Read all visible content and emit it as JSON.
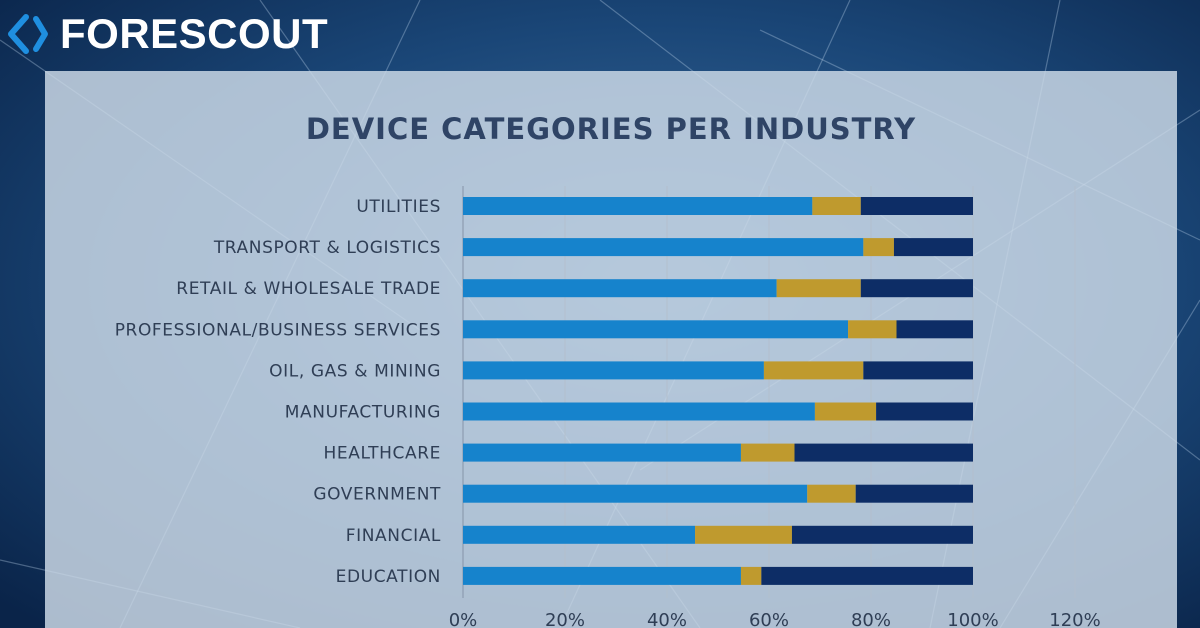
{
  "brand": {
    "name": "FORESCOUT",
    "icon": "forescout-chevron-logo",
    "colors": {
      "mark": "#1f8fe0",
      "text": "#ffffff"
    }
  },
  "chart_data": {
    "type": "bar",
    "orientation": "horizontal",
    "stacked": true,
    "title": "DEVICE CATEGORIES PER INDUSTRY",
    "categories": [
      "UTILITIES",
      "TRANSPORT & LOGISTICS",
      "RETAIL & WHOLESALE TRADE",
      "PROFESSIONAL/BUSINESS SERVICES",
      "OIL, GAS & MINING",
      "MANUFACTURING",
      "HEALTHCARE",
      "GOVERNMENT",
      "FINANCIAL",
      "EDUCATION"
    ],
    "series": [
      {
        "name": "",
        "color": "#1683cc",
        "values": [
          68.5,
          78.5,
          61.5,
          75.5,
          59,
          69,
          54.5,
          67.5,
          45.5,
          54.5
        ]
      },
      {
        "name": "",
        "color": "#bf9a2e",
        "values": [
          9.5,
          6,
          16.5,
          9.5,
          19.5,
          12,
          10.5,
          9.5,
          19,
          4
        ]
      },
      {
        "name": "",
        "color": "#0d2d66",
        "values": [
          22,
          15.5,
          22,
          15,
          21.5,
          19,
          35,
          23,
          35.5,
          41.5
        ]
      }
    ],
    "xlim": [
      0,
      120
    ],
    "xticks": [
      "0%",
      "20%",
      "40%",
      "60%",
      "80%",
      "100%",
      "120%"
    ],
    "grid": true,
    "xlabel": "",
    "ylabel": ""
  }
}
